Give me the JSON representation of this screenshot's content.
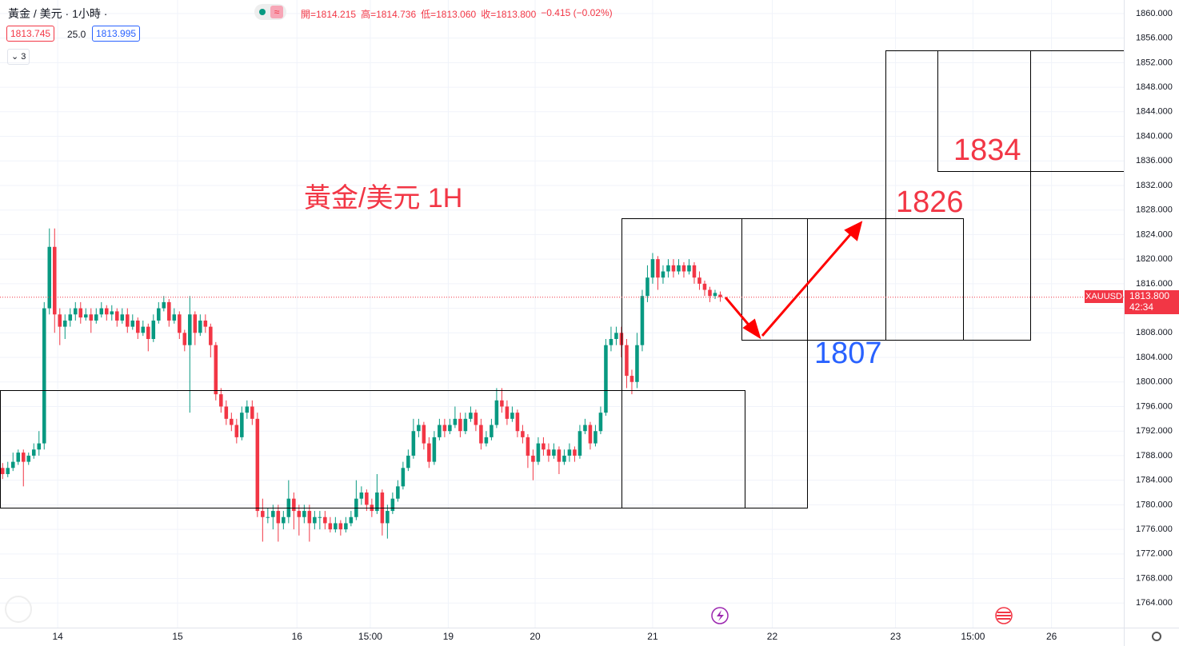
{
  "header": {
    "symbol": "黃金 / 美元 · 1小時 ·",
    "ohlc_legend": [
      "開=1814.215",
      "高=1814.736",
      "低=1813.060",
      "收=1813.800",
      "−0.415 (−0.02%)"
    ],
    "bid": "1813.745",
    "spread": "25.0",
    "ask": "1813.995",
    "indicators": "3"
  },
  "chart_data": {
    "type": "candlestick",
    "title": "黃金/美元 1H",
    "series_name": "XAUUSD",
    "up_color": "#089981",
    "down_color": "#f23645",
    "ohlc": [
      [
        1786,
        1786.8,
        1784.2,
        1785
      ],
      [
        1785,
        1787,
        1784.5,
        1786
      ],
      [
        1786,
        1788.5,
        1785.5,
        1787
      ],
      [
        1787,
        1789,
        1786.5,
        1788.5
      ],
      [
        1788.5,
        1789,
        1783,
        1787
      ],
      [
        1787,
        1788.5,
        1786.5,
        1788
      ],
      [
        1788,
        1790,
        1787.5,
        1789
      ],
      [
        1789,
        1792,
        1788,
        1790
      ],
      [
        1790,
        1813,
        1789,
        1812
      ],
      [
        1812,
        1825,
        1811,
        1822
      ],
      [
        1822,
        1825,
        1808,
        1811
      ],
      [
        1811,
        1812,
        1806,
        1809
      ],
      [
        1809,
        1811,
        1807,
        1810
      ],
      [
        1810,
        1812,
        1809,
        1811
      ],
      [
        1811,
        1813,
        1810,
        1812
      ],
      [
        1812,
        1813,
        1809.5,
        1810.5
      ],
      [
        1810.5,
        1812,
        1810,
        1811
      ],
      [
        1811,
        1812,
        1808,
        1810
      ],
      [
        1810,
        1812,
        1809.5,
        1811
      ],
      [
        1811,
        1813,
        1810.5,
        1812
      ],
      [
        1812,
        1812.5,
        1810,
        1811
      ],
      [
        1811,
        1812.5,
        1810,
        1811.5
      ],
      [
        1811.5,
        1812,
        1809,
        1810
      ],
      [
        1810,
        1812,
        1809.5,
        1811
      ],
      [
        1811,
        1812,
        1808,
        1809
      ],
      [
        1809,
        1811,
        1808.5,
        1810
      ],
      [
        1810,
        1810.5,
        1807,
        1808
      ],
      [
        1808,
        1810,
        1807.5,
        1809
      ],
      [
        1809,
        1809.5,
        1805,
        1807
      ],
      [
        1807,
        1811,
        1806.5,
        1810
      ],
      [
        1810,
        1813,
        1809.5,
        1812
      ],
      [
        1812,
        1814,
        1811.5,
        1813
      ],
      [
        1813,
        1813.5,
        1809,
        1810
      ],
      [
        1810,
        1812,
        1809.5,
        1811
      ],
      [
        1811,
        1811.5,
        1807,
        1808
      ],
      [
        1808,
        1808.5,
        1805,
        1806
      ],
      [
        1806,
        1814,
        1795,
        1811
      ],
      [
        1811,
        1811.5,
        1806,
        1808
      ],
      [
        1808,
        1811,
        1807.5,
        1810
      ],
      [
        1810,
        1811,
        1808,
        1809
      ],
      [
        1809,
        1809.5,
        1804,
        1806
      ],
      [
        1806,
        1806.5,
        1797,
        1798
      ],
      [
        1798,
        1799,
        1795,
        1796
      ],
      [
        1796,
        1797,
        1793,
        1794
      ],
      [
        1794,
        1795,
        1792,
        1793
      ],
      [
        1793,
        1794,
        1790,
        1791
      ],
      [
        1791,
        1796,
        1790.5,
        1795
      ],
      [
        1795,
        1797,
        1794,
        1796
      ],
      [
        1796,
        1797,
        1793,
        1794
      ],
      [
        1794,
        1795,
        1778,
        1779
      ],
      [
        1779,
        1781,
        1774,
        1778
      ],
      [
        1778,
        1779.5,
        1777,
        1778
      ],
      [
        1778,
        1780,
        1776,
        1779
      ],
      [
        1779,
        1780,
        1774,
        1777
      ],
      [
        1777,
        1779,
        1776,
        1778
      ],
      [
        1778,
        1784,
        1777,
        1781
      ],
      [
        1781,
        1782,
        1776,
        1779
      ],
      [
        1779,
        1780,
        1775,
        1778
      ],
      [
        1778,
        1780,
        1777,
        1779
      ],
      [
        1779,
        1780,
        1774,
        1777
      ],
      [
        1777,
        1779,
        1776,
        1778
      ],
      [
        1778,
        1779,
        1776,
        1778
      ],
      [
        1778,
        1779,
        1776,
        1777
      ],
      [
        1777,
        1778,
        1775.5,
        1776
      ],
      [
        1776,
        1778,
        1775.5,
        1777
      ],
      [
        1777,
        1777.5,
        1775,
        1776
      ],
      [
        1776,
        1778,
        1775.5,
        1777
      ],
      [
        1777,
        1779,
        1776.5,
        1778
      ],
      [
        1778,
        1784,
        1777.5,
        1781
      ],
      [
        1781,
        1783,
        1780,
        1782
      ],
      [
        1782,
        1782.5,
        1779,
        1780
      ],
      [
        1780,
        1781,
        1778,
        1779
      ],
      [
        1779,
        1785,
        1778.5,
        1782
      ],
      [
        1782,
        1782.5,
        1775,
        1777
      ],
      [
        1777,
        1780,
        1774.5,
        1779
      ],
      [
        1779,
        1782,
        1778.5,
        1781
      ],
      [
        1781,
        1784,
        1780.5,
        1783
      ],
      [
        1783,
        1787,
        1782.5,
        1786
      ],
      [
        1786,
        1789,
        1785.5,
        1788
      ],
      [
        1788,
        1794,
        1787.5,
        1792
      ],
      [
        1792,
        1794,
        1791,
        1793
      ],
      [
        1793,
        1793.5,
        1789,
        1790
      ],
      [
        1790,
        1791,
        1786,
        1787
      ],
      [
        1787,
        1792,
        1786.5,
        1791
      ],
      [
        1791,
        1794,
        1790.5,
        1793
      ],
      [
        1793,
        1794,
        1791,
        1792
      ],
      [
        1792,
        1794,
        1791.5,
        1793
      ],
      [
        1793,
        1796,
        1792.5,
        1794
      ],
      [
        1794,
        1795,
        1791,
        1792
      ],
      [
        1792,
        1795,
        1791.5,
        1794
      ],
      [
        1794,
        1796,
        1793.5,
        1795
      ],
      [
        1795,
        1795.5,
        1792,
        1793
      ],
      [
        1793,
        1794,
        1789,
        1790
      ],
      [
        1790,
        1792,
        1789.5,
        1791
      ],
      [
        1791,
        1794,
        1790.5,
        1793
      ],
      [
        1793,
        1799,
        1792.5,
        1797
      ],
      [
        1797,
        1799,
        1795,
        1796
      ],
      [
        1796,
        1797,
        1793,
        1794
      ],
      [
        1794,
        1796,
        1793.5,
        1795
      ],
      [
        1795,
        1795.5,
        1791,
        1792
      ],
      [
        1792,
        1793,
        1790,
        1791
      ],
      [
        1791,
        1791.5,
        1786,
        1788
      ],
      [
        1788,
        1789,
        1784,
        1787
      ],
      [
        1787,
        1791,
        1786.5,
        1790
      ],
      [
        1790,
        1791,
        1788,
        1789
      ],
      [
        1789,
        1790,
        1787,
        1788
      ],
      [
        1788,
        1790,
        1787.5,
        1789
      ],
      [
        1789,
        1789.5,
        1785,
        1787
      ],
      [
        1787,
        1789,
        1786.5,
        1788
      ],
      [
        1788,
        1790,
        1787,
        1789
      ],
      [
        1789,
        1789.5,
        1787,
        1788
      ],
      [
        1788,
        1793,
        1787.5,
        1792
      ],
      [
        1792,
        1794,
        1791.5,
        1793
      ],
      [
        1793,
        1793.5,
        1789,
        1790
      ],
      [
        1790,
        1793,
        1789.5,
        1792
      ],
      [
        1792,
        1796,
        1791.5,
        1795
      ],
      [
        1795,
        1807,
        1794.5,
        1806
      ],
      [
        1806,
        1809,
        1805,
        1807
      ],
      [
        1807,
        1809,
        1806,
        1808
      ],
      [
        1808,
        1809,
        1804,
        1806
      ],
      [
        1806,
        1807,
        1799,
        1801
      ],
      [
        1801,
        1802,
        1798,
        1800
      ],
      [
        1800,
        1808,
        1799,
        1806
      ],
      [
        1806,
        1815,
        1805,
        1814
      ],
      [
        1814,
        1819,
        1813,
        1817
      ],
      [
        1817,
        1821,
        1816,
        1820
      ],
      [
        1820,
        1820.5,
        1815,
        1817
      ],
      [
        1817,
        1819,
        1816,
        1818
      ],
      [
        1818,
        1820,
        1817,
        1819
      ],
      [
        1819,
        1820,
        1817,
        1818
      ],
      [
        1818,
        1820,
        1817.5,
        1819
      ],
      [
        1819,
        1819.5,
        1817,
        1818
      ],
      [
        1818,
        1820,
        1817.5,
        1819
      ],
      [
        1819,
        1819.5,
        1816,
        1817
      ],
      [
        1817,
        1818,
        1815,
        1816
      ],
      [
        1816,
        1816.5,
        1814,
        1815
      ],
      [
        1815,
        1815.5,
        1813,
        1814
      ],
      [
        1814,
        1815,
        1813.5,
        1814.5
      ],
      [
        1814.215,
        1814.736,
        1813.06,
        1813.8
      ]
    ],
    "xlim": [
      -0.5,
      215.6
    ],
    "xticks": [
      {
        "value": 10.6,
        "label": "14"
      },
      {
        "value": 33.65,
        "label": "15"
      },
      {
        "value": 56.6,
        "label": "16"
      },
      {
        "value": 70.7,
        "label": "15:00"
      },
      {
        "value": 85.7,
        "label": "19"
      },
      {
        "value": 102.4,
        "label": "20"
      },
      {
        "value": 125,
        "label": "21"
      },
      {
        "value": 148,
        "label": "22"
      },
      {
        "value": 171.7,
        "label": "23"
      },
      {
        "value": 186.6,
        "label": "15:00"
      },
      {
        "value": 201.7,
        "label": "26"
      }
    ],
    "ylim": [
      1760,
      1862.2
    ],
    "yticks": [
      {
        "value": 1764,
        "label": "1764.000"
      },
      {
        "value": 1768,
        "label": "1768.000"
      },
      {
        "value": 1772,
        "label": "1772.000"
      },
      {
        "value": 1776,
        "label": "1776.000"
      },
      {
        "value": 1780,
        "label": "1780.000"
      },
      {
        "value": 1784,
        "label": "1784.000"
      },
      {
        "value": 1788,
        "label": "1788.000"
      },
      {
        "value": 1792,
        "label": "1792.000"
      },
      {
        "value": 1796,
        "label": "1796.000"
      },
      {
        "value": 1800,
        "label": "1800.000"
      },
      {
        "value": 1804,
        "label": "1804.000"
      },
      {
        "value": 1808,
        "label": "1808.000"
      },
      {
        "value": 1812,
        "label": "1812.000"
      },
      {
        "value": 1816,
        "label": "1816.000"
      },
      {
        "value": 1820,
        "label": "1820.000"
      },
      {
        "value": 1824,
        "label": "1824.000"
      },
      {
        "value": 1828,
        "label": "1828.000"
      },
      {
        "value": 1832,
        "label": "1832.000"
      },
      {
        "value": 1836,
        "label": "1836.000"
      },
      {
        "value": 1840,
        "label": "1840.000"
      },
      {
        "value": 1844,
        "label": "1844.000"
      },
      {
        "value": 1848,
        "label": "1848.000"
      },
      {
        "value": 1852,
        "label": "1852.000"
      },
      {
        "value": 1856,
        "label": "1856.000"
      },
      {
        "value": 1860,
        "label": "1860.000"
      }
    ],
    "grid": true,
    "annotations": [
      "1834",
      "1826",
      "1807"
    ],
    "last_price": {
      "label": "1813.800",
      "countdown": "42:34"
    }
  }
}
